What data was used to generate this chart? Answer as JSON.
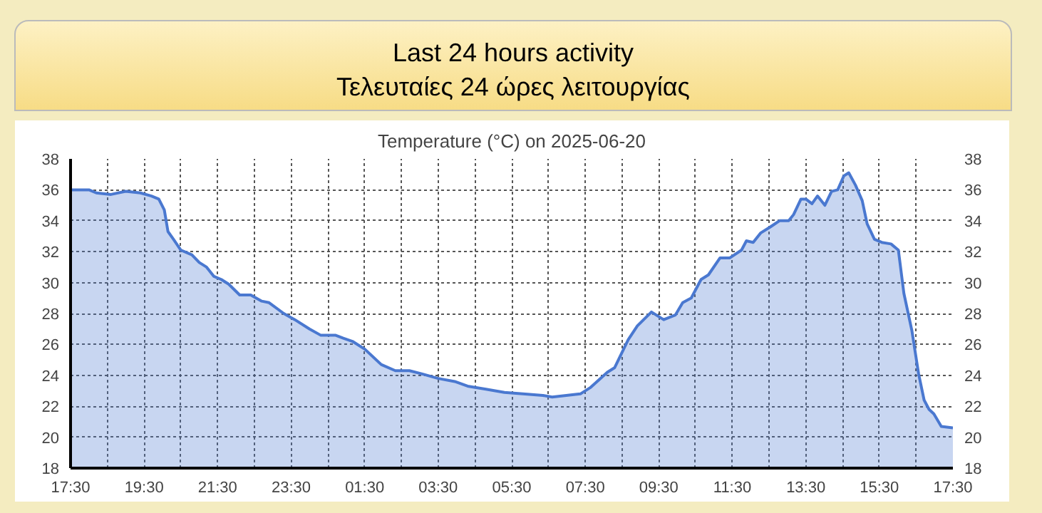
{
  "chart_data": {
    "type": "area",
    "title": "Last 24 hours activity",
    "subtitle": "Τελευταίες 24 ώρες λειτουργίας",
    "annotations": [
      "Temperature (°C) on 2025-06-20"
    ],
    "x": [
      "2025-06-19T17:30",
      "2025-06-19T18:00",
      "2025-06-19T18:12",
      "2025-06-19T18:36",
      "2025-06-19T19:00",
      "2025-06-19T19:24",
      "2025-06-19T19:42",
      "2025-06-19T19:54",
      "2025-06-19T20:03",
      "2025-06-19T20:09",
      "2025-06-19T20:18",
      "2025-06-19T20:30",
      "2025-06-19T20:48",
      "2025-06-19T21:00",
      "2025-06-19T21:12",
      "2025-06-19T21:24",
      "2025-06-19T21:36",
      "2025-06-19T21:48",
      "2025-06-19T22:06",
      "2025-06-19T22:24",
      "2025-06-19T22:42",
      "2025-06-19T22:54",
      "2025-06-19T23:18",
      "2025-06-19T23:36",
      "2025-06-20T00:00",
      "2025-06-20T00:18",
      "2025-06-20T00:42",
      "2025-06-20T00:55",
      "2025-06-20T01:10",
      "2025-06-20T01:30",
      "2025-06-20T01:57",
      "2025-06-20T02:20",
      "2025-06-20T02:43",
      "2025-06-20T03:03",
      "2025-06-20T03:30",
      "2025-06-20T03:57",
      "2025-06-20T04:18",
      "2025-06-20T04:48",
      "2025-06-20T05:18",
      "2025-06-20T05:48",
      "2025-06-20T06:21",
      "2025-06-20T06:36",
      "2025-06-20T06:59",
      "2025-06-20T07:22",
      "2025-06-20T07:38",
      "2025-06-20T08:06",
      "2025-06-20T08:18",
      "2025-06-20T08:40",
      "2025-06-20T08:55",
      "2025-06-20T09:18",
      "2025-06-20T09:38",
      "2025-06-20T09:57",
      "2025-06-20T10:09",
      "2025-06-20T10:23",
      "2025-06-20T10:39",
      "2025-06-20T10:51",
      "2025-06-20T11:10",
      "2025-06-20T11:26",
      "2025-06-20T11:45",
      "2025-06-20T11:53",
      "2025-06-20T12:04",
      "2025-06-20T12:16",
      "2025-06-20T12:32",
      "2025-06-20T12:47",
      "2025-06-20T13:02",
      "2025-06-20T13:10",
      "2025-06-20T13:22",
      "2025-06-20T13:30",
      "2025-06-20T13:40",
      "2025-06-20T13:49",
      "2025-06-20T14:01",
      "2025-06-20T14:12",
      "2025-06-20T14:22",
      "2025-06-20T14:32",
      "2025-06-20T14:40",
      "2025-06-20T14:51",
      "2025-06-20T15:02",
      "2025-06-20T15:10",
      "2025-06-20T15:22",
      "2025-06-20T15:34",
      "2025-06-20T15:49",
      "2025-06-20T16:01",
      "2025-06-20T16:10",
      "2025-06-20T16:23",
      "2025-06-20T16:34",
      "2025-06-20T16:43",
      "2025-06-20T16:51",
      "2025-06-20T16:59",
      "2025-06-20T17:11",
      "2025-06-20T17:30"
    ],
    "series": [
      {
        "color": "#4a78d0",
        "values": [
          36.0,
          36.0,
          35.8,
          35.7,
          35.9,
          35.8,
          35.6,
          35.4,
          34.7,
          33.3,
          32.8,
          32.1,
          31.8,
          31.3,
          31.0,
          30.4,
          30.2,
          29.9,
          29.2,
          29.2,
          28.8,
          28.7,
          28.0,
          27.6,
          27.0,
          26.6,
          26.6,
          26.4,
          26.2,
          25.7,
          24.7,
          24.3,
          24.3,
          24.1,
          23.8,
          23.6,
          23.3,
          23.1,
          22.9,
          22.8,
          22.7,
          22.6,
          22.7,
          22.8,
          23.2,
          24.2,
          24.5,
          26.3,
          27.2,
          28.1,
          27.6,
          27.9,
          28.7,
          29.0,
          30.2,
          30.5,
          31.6,
          31.6,
          32.1,
          32.7,
          32.6,
          33.2,
          33.6,
          34.0,
          34.0,
          34.4,
          35.4,
          35.4,
          35.1,
          35.6,
          35.0,
          35.9,
          36.0,
          36.9,
          37.1,
          36.3,
          35.3,
          33.8,
          32.8,
          32.6,
          32.5,
          32.1,
          29.3,
          26.9,
          24.1,
          22.4,
          21.8,
          21.5,
          20.7,
          20.6
        ]
      }
    ],
    "xlim": [
      "2025-06-19T17:30",
      "2025-06-20T17:30"
    ],
    "xticks": [
      {
        "value": "2025-06-19T17:30",
        "label": "17:30"
      },
      {
        "value": "2025-06-19T18:30",
        "label": null
      },
      {
        "value": "2025-06-19T19:30",
        "label": "19:30"
      },
      {
        "value": "2025-06-19T20:30",
        "label": null
      },
      {
        "value": "2025-06-19T21:30",
        "label": "21:30"
      },
      {
        "value": "2025-06-19T22:30",
        "label": null
      },
      {
        "value": "2025-06-19T23:30",
        "label": "23:30"
      },
      {
        "value": "2025-06-20T00:30",
        "label": null
      },
      {
        "value": "2025-06-20T01:30",
        "label": "01:30"
      },
      {
        "value": "2025-06-20T02:30",
        "label": null
      },
      {
        "value": "2025-06-20T03:30",
        "label": "03:30"
      },
      {
        "value": "2025-06-20T04:30",
        "label": null
      },
      {
        "value": "2025-06-20T05:30",
        "label": "05:30"
      },
      {
        "value": "2025-06-20T06:30",
        "label": null
      },
      {
        "value": "2025-06-20T07:30",
        "label": "07:30"
      },
      {
        "value": "2025-06-20T08:30",
        "label": null
      },
      {
        "value": "2025-06-20T09:30",
        "label": "09:30"
      },
      {
        "value": "2025-06-20T10:30",
        "label": null
      },
      {
        "value": "2025-06-20T11:30",
        "label": "11:30"
      },
      {
        "value": "2025-06-20T12:30",
        "label": null
      },
      {
        "value": "2025-06-20T13:30",
        "label": "13:30"
      },
      {
        "value": "2025-06-20T14:30",
        "label": null
      },
      {
        "value": "2025-06-20T15:30",
        "label": "15:30"
      },
      {
        "value": "2025-06-20T16:30",
        "label": null
      },
      {
        "value": "2025-06-20T17:30",
        "label": "17:30"
      }
    ],
    "ylim": [
      18,
      38
    ],
    "yticks": [
      18,
      20,
      22,
      24,
      26,
      28,
      30,
      32,
      34,
      36,
      38
    ],
    "y2lim": [
      18,
      38
    ],
    "y2ticks": [
      18,
      20,
      22,
      24,
      26,
      28,
      30,
      32,
      34,
      36,
      38
    ],
    "grid": true,
    "line_style": "dotted"
  }
}
